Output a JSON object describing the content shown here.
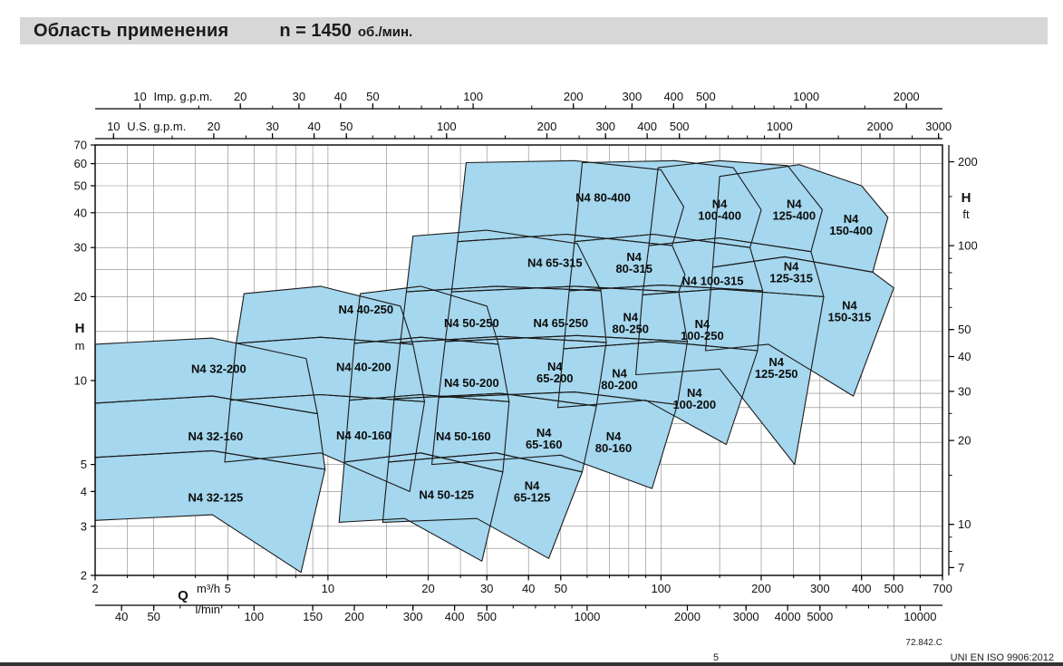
{
  "title": {
    "main": "Область применения",
    "n": "n = 1450",
    "unit": "об./мин."
  },
  "footer": {
    "ref": "72.842.C",
    "note_marker": "5",
    "note": "UNI EN ISO 9906:2012"
  },
  "chart_data": {
    "type": "area",
    "title": "Область применения n = 1450 об./мин.",
    "xlabel": "Q",
    "ylabel": "H",
    "grid": "log-log minor grid on",
    "region_fill": "#a5d7ee",
    "region_stroke": "#1a1a1a",
    "x_axis_m3h": {
      "label": "Q",
      "unit": "m³/h",
      "lim": [
        2,
        700
      ],
      "ticks": [
        2,
        5,
        10,
        20,
        30,
        40,
        50,
        100,
        200,
        300,
        400,
        500,
        700
      ]
    },
    "x_axis_lmin": {
      "unit": "l/min",
      "factor_from_m3h": 16.667,
      "ticks": [
        40,
        50,
        100,
        150,
        200,
        300,
        400,
        500,
        1000,
        2000,
        3000,
        4000,
        5000,
        10000
      ]
    },
    "x_axis_us": {
      "unit": "U.S. g.p.m.",
      "factor_from_m3h": 4.403,
      "ticks": [
        10,
        20,
        30,
        40,
        50,
        100,
        200,
        300,
        400,
        500,
        1000,
        2000,
        3000
      ]
    },
    "x_axis_imp": {
      "unit": "Imp. g.p.m.",
      "factor_from_m3h": 3.666,
      "ticks": [
        10,
        20,
        30,
        40,
        50,
        100,
        200,
        300,
        400,
        500,
        1000,
        2000
      ]
    },
    "y_axis_m": {
      "label": "H",
      "unit": "m",
      "lim": [
        2,
        70
      ],
      "ticks": [
        70,
        60,
        50,
        40,
        30,
        20,
        10,
        5,
        4,
        3,
        2
      ]
    },
    "y_axis_ft": {
      "label": "H",
      "unit": "ft",
      "factor_from_m": 3.281,
      "ticks": [
        200,
        100,
        50,
        40,
        30,
        20,
        10,
        7
      ]
    },
    "regions": [
      {
        "name": "N4 32-125",
        "lines": [
          "N4 32-125"
        ],
        "label_at": [
          4.6,
          3.8
        ],
        "poly": [
          [
            2,
            5.3
          ],
          [
            4.5,
            5.6
          ],
          [
            9.8,
            4.8
          ],
          [
            8.3,
            2.05
          ],
          [
            4.5,
            3.3
          ],
          [
            2,
            3.15
          ]
        ]
      },
      {
        "name": "N4 32-160",
        "lines": [
          "N4 32-160"
        ],
        "label_at": [
          4.6,
          6.3
        ],
        "poly": [
          [
            2,
            8.3
          ],
          [
            4.5,
            8.8
          ],
          [
            9.3,
            7.6
          ],
          [
            9.8,
            4.8
          ],
          [
            4.5,
            5.6
          ],
          [
            2,
            5.3
          ]
        ]
      },
      {
        "name": "N4 32-200",
        "lines": [
          "N4 32-200"
        ],
        "label_at": [
          4.7,
          11
        ],
        "poly": [
          [
            2,
            13.5
          ],
          [
            4.5,
            14.2
          ],
          [
            8.6,
            12
          ],
          [
            9.3,
            7.6
          ],
          [
            4.5,
            8.8
          ],
          [
            2,
            8.3
          ]
        ]
      },
      {
        "name": "N4 40-160",
        "lines": [
          "N4 40-160"
        ],
        "label_at": [
          12.8,
          6.35
        ],
        "poly": [
          [
            5.1,
            8.5
          ],
          [
            9.5,
            8.9
          ],
          [
            19.5,
            8.4
          ],
          [
            17.6,
            4
          ],
          [
            9.5,
            5.5
          ],
          [
            4.9,
            5.1
          ]
        ]
      },
      {
        "name": "N4 40-200",
        "lines": [
          "N4 40-200"
        ],
        "label_at": [
          12.8,
          11.2
        ],
        "poly": [
          [
            5.3,
            13.6
          ],
          [
            9.5,
            14.3
          ],
          [
            18,
            13.5
          ],
          [
            19.5,
            8.4
          ],
          [
            9.5,
            8.9
          ],
          [
            5.1,
            8.5
          ]
        ]
      },
      {
        "name": "N4 40-250",
        "lines": [
          "N4 40-250"
        ],
        "label_at": [
          13,
          18
        ],
        "poly": [
          [
            5.6,
            20.5
          ],
          [
            9.5,
            21.8
          ],
          [
            16.5,
            18.5
          ],
          [
            18,
            13.5
          ],
          [
            9.5,
            14.3
          ],
          [
            5.3,
            13.6
          ]
        ]
      },
      {
        "name": "N4 50-125",
        "lines": [
          "N4 50-125"
        ],
        "label_at": [
          22.7,
          3.9
        ],
        "poly": [
          [
            11.2,
            5.1
          ],
          [
            19,
            5.5
          ],
          [
            33.5,
            4.7
          ],
          [
            29,
            2.25
          ],
          [
            17,
            3.2
          ],
          [
            10.8,
            3.1
          ]
        ]
      },
      {
        "name": "N4 50-160",
        "lines": [
          "N4 50-160"
        ],
        "label_at": [
          25.5,
          6.3
        ],
        "poly": [
          [
            11.6,
            8.5
          ],
          [
            19,
            8.9
          ],
          [
            35,
            8.4
          ],
          [
            33.5,
            4.7
          ],
          [
            19,
            5.5
          ],
          [
            11.2,
            5.1
          ]
        ]
      },
      {
        "name": "N4 50-200",
        "lines": [
          "N4 50-200"
        ],
        "label_at": [
          27,
          9.8
        ],
        "poly": [
          [
            12,
            13.6
          ],
          [
            19,
            14.3
          ],
          [
            32.5,
            13.5
          ],
          [
            35,
            8.4
          ],
          [
            19,
            8.9
          ],
          [
            11.6,
            8.5
          ]
        ]
      },
      {
        "name": "N4 50-250",
        "lines": [
          "N4 50-250"
        ],
        "label_at": [
          27,
          16.1
        ],
        "poly": [
          [
            12.5,
            20.5
          ],
          [
            19,
            21.8
          ],
          [
            30,
            18.5
          ],
          [
            32.5,
            13.5
          ],
          [
            19,
            14.3
          ],
          [
            12,
            13.6
          ]
        ]
      },
      {
        "name": "N4 65-125",
        "lines": [
          "N4",
          "65-125"
        ],
        "label_at": [
          41,
          4
        ],
        "poly": [
          [
            15.2,
            5.1
          ],
          [
            32,
            5.5
          ],
          [
            58,
            4.7
          ],
          [
            46,
            2.3
          ],
          [
            28,
            3.2
          ],
          [
            14.6,
            3.1
          ]
        ]
      },
      {
        "name": "N4 65-160",
        "lines": [
          "N4",
          "65-160"
        ],
        "label_at": [
          44.5,
          6.2
        ],
        "poly": [
          [
            15.8,
            8.6
          ],
          [
            33,
            9
          ],
          [
            64,
            8.1
          ],
          [
            58,
            4.7
          ],
          [
            32,
            5.5
          ],
          [
            15.2,
            5.1
          ]
        ]
      },
      {
        "name": "N4 65-200",
        "lines": [
          "N4",
          "65-200"
        ],
        "label_at": [
          48,
          10.7
        ],
        "poly": [
          [
            16.5,
            13.7
          ],
          [
            33,
            14.4
          ],
          [
            68.5,
            13.7
          ],
          [
            64,
            8.1
          ],
          [
            33,
            9
          ],
          [
            15.8,
            8.6
          ]
        ]
      },
      {
        "name": "N4 65-250",
        "lines": [
          "N4 65-250"
        ],
        "label_at": [
          50,
          16.1
        ],
        "poly": [
          [
            17.2,
            20.8
          ],
          [
            32,
            21.8
          ],
          [
            66,
            21
          ],
          [
            68.5,
            13.7
          ],
          [
            33,
            14.4
          ],
          [
            16.5,
            13.7
          ]
        ]
      },
      {
        "name": "N4 65-315",
        "lines": [
          "N4 65-315"
        ],
        "label_at": [
          48,
          26.5
        ],
        "poly": [
          [
            18,
            33
          ],
          [
            30,
            34.6
          ],
          [
            56,
            31
          ],
          [
            66,
            21
          ],
          [
            32,
            21.8
          ],
          [
            17.2,
            20.8
          ]
        ]
      },
      {
        "name": "N4 80-160",
        "lines": [
          "N4",
          "80-160"
        ],
        "label_at": [
          72,
          6
        ],
        "poly": [
          [
            21.5,
            8.7
          ],
          [
            55,
            9.1
          ],
          [
            112,
            8.2
          ],
          [
            94,
            4.1
          ],
          [
            50,
            5.4
          ],
          [
            20.5,
            5
          ]
        ]
      },
      {
        "name": "N4 80-200",
        "lines": [
          "N4",
          "80-200"
        ],
        "label_at": [
          75,
          10.1
        ],
        "poly": [
          [
            22.5,
            13.8
          ],
          [
            56,
            14.5
          ],
          [
            120,
            13.8
          ],
          [
            112,
            8.2
          ],
          [
            55,
            9.1
          ],
          [
            21.5,
            8.7
          ]
        ]
      },
      {
        "name": "N4 80-250",
        "lines": [
          "N4",
          "80-250"
        ],
        "label_at": [
          81,
          16.1
        ],
        "poly": [
          [
            23.5,
            20.8
          ],
          [
            55,
            21.8
          ],
          [
            113,
            20.8
          ],
          [
            120,
            13.8
          ],
          [
            56,
            14.5
          ],
          [
            22.5,
            13.8
          ]
        ]
      },
      {
        "name": "N4 80-315",
        "lines": [
          "N4",
          "80-315"
        ],
        "label_at": [
          83,
          26.5
        ],
        "poly": [
          [
            24.5,
            31.5
          ],
          [
            52,
            33.5
          ],
          [
            108,
            30.5
          ],
          [
            118,
            24
          ],
          [
            113,
            20.8
          ],
          [
            55,
            21.8
          ],
          [
            23.5,
            20.8
          ]
        ]
      },
      {
        "name": "N4 80-400",
        "lines": [
          "N4 80-400"
        ],
        "label_at": [
          67,
          45.3
        ],
        "poly": [
          [
            26,
            60.5
          ],
          [
            55,
            61.5
          ],
          [
            100,
            57
          ],
          [
            117,
            42
          ],
          [
            108,
            30.5
          ],
          [
            52,
            33.5
          ],
          [
            24.5,
            31.5
          ]
        ]
      },
      {
        "name": "N4 100-200",
        "lines": [
          "N4",
          "100-200"
        ],
        "label_at": [
          126,
          8.6
        ],
        "poly": [
          [
            51,
            13
          ],
          [
            100,
            13.8
          ],
          [
            195,
            12.8
          ],
          [
            157,
            5.9
          ],
          [
            90,
            8.5
          ],
          [
            49,
            8
          ]
        ]
      },
      {
        "name": "N4 100-250",
        "lines": [
          "N4",
          "100-250"
        ],
        "label_at": [
          133,
          15.2
        ],
        "poly": [
          [
            53,
            21
          ],
          [
            100,
            22
          ],
          [
            202,
            21
          ],
          [
            195,
            12.8
          ],
          [
            100,
            13.8
          ],
          [
            51,
            13
          ]
        ]
      },
      {
        "name": "N4 100-315",
        "lines": [
          "N4 100-315"
        ],
        "label_at": [
          143,
          22.8
        ],
        "poly": [
          [
            55,
            31.5
          ],
          [
            95,
            33.5
          ],
          [
            185,
            30
          ],
          [
            202,
            21
          ],
          [
            100,
            22
          ],
          [
            53,
            21
          ]
        ]
      },
      {
        "name": "N4 100-400",
        "lines": [
          "N4",
          "100-400"
        ],
        "label_at": [
          150,
          41
        ],
        "poly": [
          [
            58,
            60.5
          ],
          [
            110,
            61.5
          ],
          [
            165,
            58
          ],
          [
            200,
            41
          ],
          [
            185,
            30
          ],
          [
            95,
            33.5
          ],
          [
            55,
            31.5
          ]
        ]
      },
      {
        "name": "N4 125-250",
        "lines": [
          "N4",
          "125-250"
        ],
        "label_at": [
          222,
          11.1
        ],
        "poly": [
          [
            88,
            20.3
          ],
          [
            150,
            21.3
          ],
          [
            308,
            20
          ],
          [
            252,
            5
          ],
          [
            150,
            11
          ],
          [
            84,
            10.5
          ]
        ]
      },
      {
        "name": "N4 125-315",
        "lines": [
          "N4",
          "125-315"
        ],
        "label_at": [
          246,
          24.5
        ],
        "poly": [
          [
            92,
            30.5
          ],
          [
            150,
            32.5
          ],
          [
            282,
            29
          ],
          [
            308,
            20
          ],
          [
            150,
            21.3
          ],
          [
            88,
            20.3
          ]
        ]
      },
      {
        "name": "N4 125-400",
        "lines": [
          "N4",
          "125-400"
        ],
        "label_at": [
          251,
          41
        ],
        "poly": [
          [
            98,
            58
          ],
          [
            150,
            61.5
          ],
          [
            240,
            59
          ],
          [
            305,
            41
          ],
          [
            282,
            29
          ],
          [
            150,
            32.5
          ],
          [
            92,
            30.5
          ]
        ]
      },
      {
        "name": "N4 150-315",
        "lines": [
          "N4",
          "150-315"
        ],
        "label_at": [
          368,
          17.7
        ],
        "poly": [
          [
            143,
            25.5
          ],
          [
            235,
            27.8
          ],
          [
            432,
            24.5
          ],
          [
            500,
            21.5
          ],
          [
            378,
            8.8
          ],
          [
            210,
            13.5
          ],
          [
            136,
            12.8
          ]
        ]
      },
      {
        "name": "N4 150-400",
        "lines": [
          "N4",
          "150-400"
        ],
        "label_at": [
          372,
          36.2
        ],
        "poly": [
          [
            150,
            54
          ],
          [
            260,
            59.5
          ],
          [
            400,
            50
          ],
          [
            480,
            38.5
          ],
          [
            432,
            24.5
          ],
          [
            235,
            27.8
          ],
          [
            143,
            25.5
          ]
        ]
      }
    ]
  }
}
